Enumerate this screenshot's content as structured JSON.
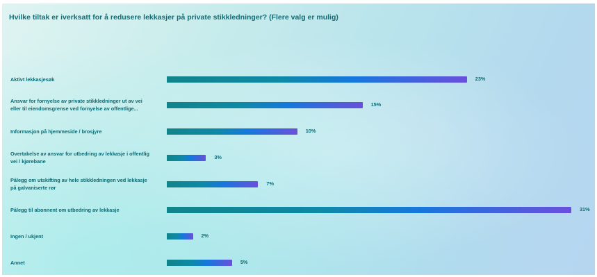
{
  "chart_data": {
    "type": "bar",
    "orientation": "horizontal",
    "title": "Hvilke tiltak er iverksatt for å redusere lekkasjer på private stikkledninger? (Flere valg er mulig)",
    "categories": [
      [
        "Aktivt lekkasjesøk"
      ],
      [
        "Ansvar for fornyelse av private stikkledninger ut av vei",
        "eller til eiendomsgrense ved fornyelse av offentlige..."
      ],
      [
        "Informasjon på hjemmeside / brosjyre"
      ],
      [
        "Overtakelse av ansvar for utbedring av lekkasje i offentlig",
        "vei / kjørebane"
      ],
      [
        "Pålegg om utskifting av hele stikkledningen ved lekkasje",
        "på galvaniserte rør"
      ],
      [
        "Pålegg til abonnent om utbedring av lekkasje"
      ],
      [
        "Ingen / ukjent"
      ],
      [
        "Annet"
      ]
    ],
    "values": [
      23,
      15,
      10,
      3,
      7,
      31,
      2,
      5
    ],
    "value_labels": [
      "23%",
      "15%",
      "10%",
      "3%",
      "7%",
      "31%",
      "2%",
      "5%"
    ],
    "value_unit": "%",
    "xlim": [
      0,
      31
    ],
    "grid": false,
    "legend": "none",
    "bar_gradient": [
      "#11848a",
      "#0e89a6",
      "#1677dc",
      "#6a4fdc"
    ]
  }
}
